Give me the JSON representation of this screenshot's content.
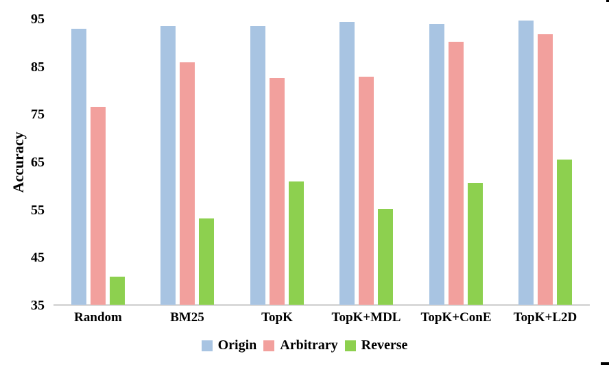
{
  "chart_data": {
    "type": "bar",
    "title": "",
    "xlabel": "",
    "ylabel": "Accuracy",
    "ylim": [
      35,
      95
    ],
    "yticks": [
      35,
      45,
      55,
      65,
      75,
      85,
      95
    ],
    "grid": false,
    "legend_position": "bottom",
    "categories": [
      "Random",
      "BM25",
      "TopK",
      "TopK+MDL",
      "TopK+ConE",
      "TopK+L2D"
    ],
    "series": [
      {
        "name": "Origin",
        "color": "#a8c4e2",
        "values": [
          93.0,
          93.5,
          93.5,
          94.4,
          94.0,
          94.7
        ]
      },
      {
        "name": "Arbitrary",
        "color": "#f2a09d",
        "values": [
          76.6,
          86.0,
          82.7,
          83.0,
          90.3,
          91.8
        ]
      },
      {
        "name": "Reverse",
        "color": "#8dd04f",
        "values": [
          41.0,
          53.2,
          61.0,
          55.3,
          60.7,
          65.6
        ]
      }
    ],
    "axis_line_color": "#d9d9d9",
    "text_color": "#000000"
  }
}
